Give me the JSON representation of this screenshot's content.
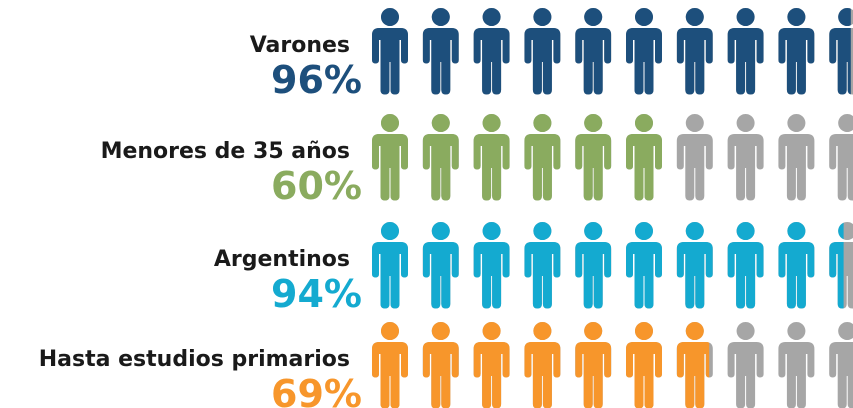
{
  "chart_data": {
    "type": "pictograph",
    "categories": [
      "Varones",
      "Menores de 35 años",
      "Argentinos",
      "Hasta estudios primarios"
    ],
    "values": [
      96,
      60,
      94,
      69
    ],
    "value_labels": [
      "96%",
      "60%",
      "94%",
      "69%"
    ],
    "colors": [
      "#1d4f7c",
      "#8aab5f",
      "#14aad0",
      "#f7962b"
    ],
    "empty_color": "#a6a6a6",
    "xlim": [
      0,
      100
    ]
  }
}
